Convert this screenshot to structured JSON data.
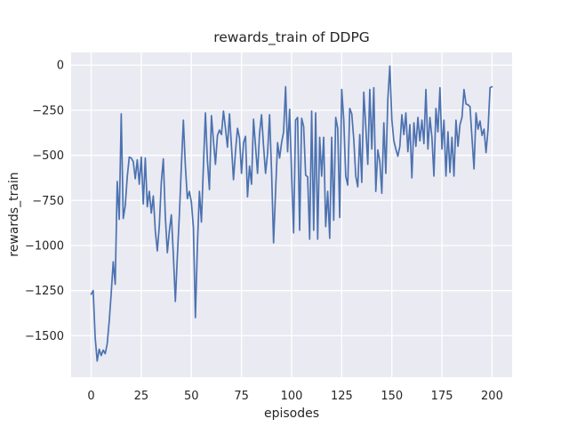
{
  "figure": {
    "title": "rewards_train of DDPG",
    "xlabel": "episodes",
    "ylabel": "rewards_train",
    "colors": {
      "figure_background": "#ffffff",
      "axes_background": "#eaeaf2",
      "grid": "#ffffff",
      "line": "#4c72b0",
      "text": "#262626"
    }
  },
  "chart_data": {
    "type": "line",
    "title": "rewards_train of DDPG",
    "xlabel": "episodes",
    "ylabel": "rewards_train",
    "xlim": [
      -10,
      210
    ],
    "ylim": [
      -1730,
      70
    ],
    "x_ticks": [
      0,
      25,
      50,
      75,
      100,
      125,
      150,
      175,
      200
    ],
    "y_ticks": [
      0,
      -250,
      -500,
      -750,
      -1000,
      -1250,
      -1500
    ],
    "grid": true,
    "legend": false,
    "series": [
      {
        "name": "rewards_train",
        "x_start": 0,
        "x_step": 1,
        "values": [
          -1270,
          -1250,
          -1510,
          -1640,
          -1575,
          -1610,
          -1580,
          -1600,
          -1545,
          -1420,
          -1265,
          -1090,
          -1215,
          -645,
          -855,
          -270,
          -850,
          -780,
          -620,
          -510,
          -515,
          -535,
          -630,
          -525,
          -660,
          -510,
          -770,
          -515,
          -785,
          -700,
          -820,
          -725,
          -920,
          -1030,
          -890,
          -650,
          -520,
          -840,
          -1040,
          -920,
          -830,
          -1050,
          -1310,
          -1060,
          -830,
          -560,
          -305,
          -560,
          -740,
          -700,
          -760,
          -900,
          -1400,
          -1000,
          -700,
          -870,
          -560,
          -265,
          -530,
          -690,
          -280,
          -420,
          -550,
          -390,
          -360,
          -385,
          -255,
          -350,
          -455,
          -270,
          -450,
          -635,
          -480,
          -350,
          -405,
          -600,
          -430,
          -395,
          -730,
          -560,
          -660,
          -300,
          -450,
          -600,
          -380,
          -275,
          -450,
          -600,
          -490,
          -275,
          -590,
          -985,
          -700,
          -430,
          -515,
          -430,
          -370,
          -120,
          -480,
          -245,
          -610,
          -930,
          -305,
          -290,
          -915,
          -295,
          -340,
          -610,
          -620,
          -965,
          -255,
          -915,
          -265,
          -965,
          -400,
          -615,
          -400,
          -895,
          -700,
          -960,
          -400,
          -860,
          -290,
          -350,
          -845,
          -135,
          -300,
          -615,
          -665,
          -240,
          -270,
          -410,
          -615,
          -675,
          -385,
          -650,
          -150,
          -340,
          -550,
          -135,
          -465,
          -125,
          -700,
          -470,
          -535,
          -710,
          -320,
          -600,
          -190,
          -5,
          -300,
          -420,
          -465,
          -505,
          -450,
          -275,
          -385,
          -265,
          -480,
          -330,
          -625,
          -320,
          -450,
          -290,
          -420,
          -305,
          -435,
          -135,
          -465,
          -290,
          -400,
          -615,
          -240,
          -370,
          -125,
          -465,
          -305,
          -615,
          -370,
          -595,
          -400,
          -615,
          -305,
          -450,
          -330,
          -290,
          -135,
          -215,
          -220,
          -230,
          -405,
          -575,
          -265,
          -355,
          -310,
          -390,
          -355,
          -485,
          -355,
          -125,
          -120
        ]
      }
    ]
  }
}
